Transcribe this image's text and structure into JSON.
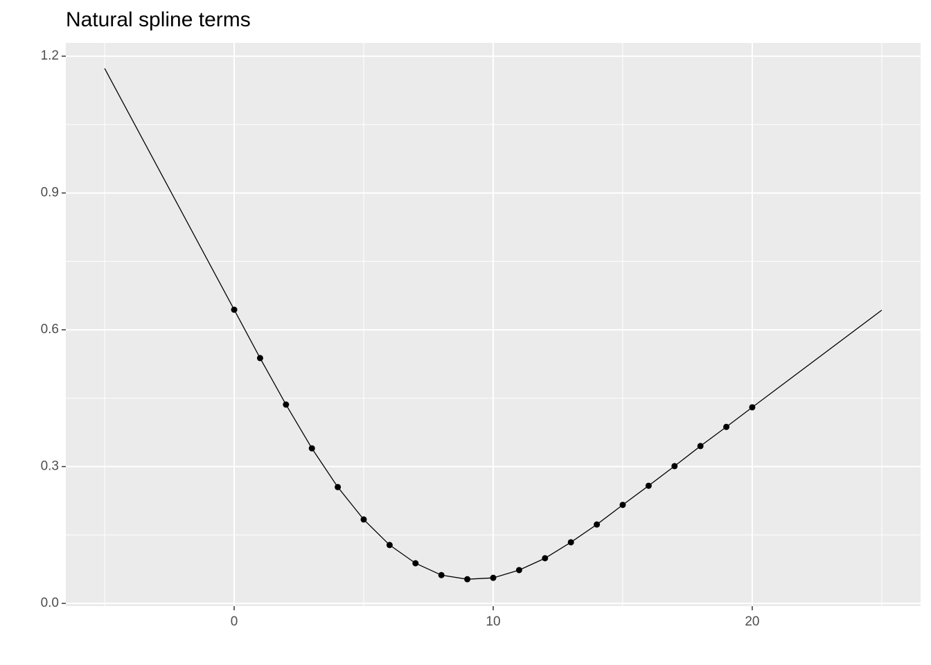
{
  "chart_data": {
    "type": "line",
    "title": "Natural spline terms",
    "line": {
      "color": "#000000",
      "x": [
        -5,
        0,
        1,
        2,
        3,
        4,
        5,
        6,
        7,
        8,
        9,
        10,
        11,
        12,
        13,
        14,
        15,
        16,
        17,
        18,
        19,
        20,
        25
      ],
      "values": [
        1.173,
        0.644,
        0.538,
        0.436,
        0.34,
        0.255,
        0.184,
        0.128,
        0.088,
        0.062,
        0.053,
        0.056,
        0.073,
        0.099,
        0.134,
        0.173,
        0.216,
        0.258,
        0.301,
        0.345,
        0.387,
        0.43,
        0.643
      ]
    },
    "points": {
      "color": "#000000",
      "x": [
        0,
        1,
        2,
        3,
        4,
        5,
        6,
        7,
        8,
        9,
        10,
        11,
        12,
        13,
        14,
        15,
        16,
        17,
        18,
        19,
        20
      ],
      "values": [
        0.644,
        0.538,
        0.436,
        0.34,
        0.255,
        0.184,
        0.128,
        0.088,
        0.062,
        0.053,
        0.056,
        0.073,
        0.099,
        0.134,
        0.173,
        0.216,
        0.258,
        0.301,
        0.345,
        0.387,
        0.43
      ]
    },
    "xlim": [
      -6.5,
      26.5
    ],
    "ylim": [
      -0.006,
      1.229
    ],
    "xticks": [
      0,
      10,
      20
    ],
    "yticks": [
      {
        "value": 0,
        "label": "0.0"
      },
      0.3,
      0.6,
      0.9,
      1.2
    ],
    "minor_xticks": [
      -5,
      5,
      15,
      25
    ],
    "minor_yticks": [
      0.15,
      0.45,
      0.75,
      1.05
    ],
    "grid": true
  }
}
